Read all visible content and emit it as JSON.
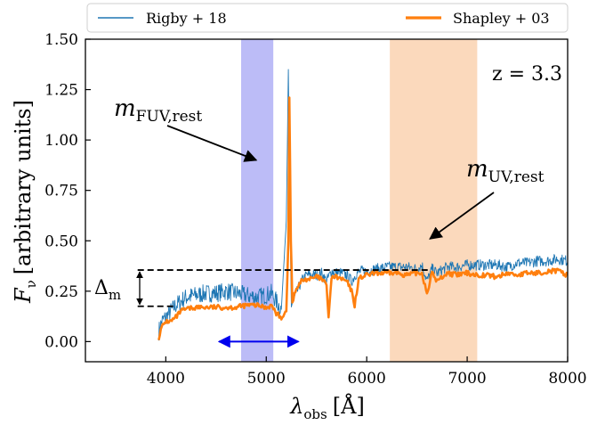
{
  "chart_data": {
    "type": "line",
    "xlabel_symbol": "λ",
    "xlabel_sub": "obs",
    "xlabel_unit": "[Å]",
    "ylabel_symbol": "F",
    "ylabel_sub": "ν",
    "ylabel_unit": "[arbitrary units]",
    "xlim": [
      3200,
      8000
    ],
    "ylim": [
      -0.1,
      1.5
    ],
    "xticks": [
      4000,
      5000,
      6000,
      7000,
      8000
    ],
    "yticks": [
      0.0,
      0.25,
      0.5,
      0.75,
      1.0,
      1.25,
      1.5
    ],
    "ytick_labels": [
      "0.00",
      "0.25",
      "0.50",
      "0.75",
      "1.00",
      "1.25",
      "1.50"
    ],
    "grid": false,
    "legend_position": "top, above plot",
    "series": [
      {
        "name": "Rigby + 18",
        "color": "#1f77b4",
        "style": "noisy thin line",
        "x": [
          3930,
          3960,
          4000,
          4050,
          4100,
          4150,
          4200,
          4300,
          4400,
          4500,
          4600,
          4700,
          4800,
          4900,
          5000,
          5050,
          5100,
          5150,
          5200,
          5220,
          5235,
          5250,
          5300,
          5350,
          5400,
          5450,
          5500,
          5550,
          5600,
          5650,
          5700,
          5750,
          5800,
          5850,
          5900,
          5950,
          6000,
          6100,
          6200,
          6300,
          6400,
          6500,
          6550,
          6600,
          6650,
          6700,
          6800,
          6900,
          7000,
          7100,
          7200,
          7300,
          7400,
          7500,
          7600,
          7700,
          7800,
          7900,
          8000
        ],
        "y": [
          0.05,
          0.1,
          0.12,
          0.15,
          0.18,
          0.2,
          0.22,
          0.23,
          0.24,
          0.24,
          0.25,
          0.24,
          0.23,
          0.22,
          0.23,
          0.24,
          0.2,
          0.16,
          0.6,
          1.35,
          0.6,
          0.18,
          0.24,
          0.3,
          0.33,
          0.33,
          0.33,
          0.34,
          0.3,
          0.35,
          0.34,
          0.34,
          0.33,
          0.3,
          0.34,
          0.35,
          0.35,
          0.36,
          0.37,
          0.37,
          0.37,
          0.36,
          0.38,
          0.3,
          0.36,
          0.34,
          0.37,
          0.37,
          0.38,
          0.38,
          0.38,
          0.38,
          0.37,
          0.39,
          0.39,
          0.4,
          0.4,
          0.41,
          0.4
        ]
      },
      {
        "name": "Shapley + 03",
        "color": "#ff7f0e",
        "style": "thick line",
        "x": [
          3930,
          3960,
          4000,
          4050,
          4100,
          4150,
          4200,
          4300,
          4400,
          4500,
          4600,
          4700,
          4800,
          4900,
          5000,
          5050,
          5100,
          5150,
          5200,
          5220,
          5230,
          5245,
          5260,
          5300,
          5350,
          5400,
          5450,
          5500,
          5550,
          5600,
          5620,
          5650,
          5700,
          5750,
          5800,
          5850,
          5880,
          5920,
          5950,
          6000,
          6100,
          6200,
          6300,
          6400,
          6500,
          6550,
          6600,
          6650,
          6700,
          6800,
          6900,
          7000,
          7100,
          7200,
          7300,
          7400,
          7500,
          7600,
          7700,
          7800,
          7900,
          8000
        ],
        "y": [
          0.02,
          0.07,
          0.1,
          0.1,
          0.12,
          0.15,
          0.16,
          0.17,
          0.17,
          0.17,
          0.17,
          0.17,
          0.18,
          0.18,
          0.17,
          0.18,
          0.14,
          0.12,
          0.15,
          0.5,
          1.21,
          0.5,
          0.2,
          0.26,
          0.3,
          0.31,
          0.31,
          0.32,
          0.31,
          0.28,
          0.12,
          0.32,
          0.32,
          0.31,
          0.3,
          0.25,
          0.18,
          0.31,
          0.32,
          0.33,
          0.34,
          0.34,
          0.34,
          0.33,
          0.34,
          0.34,
          0.24,
          0.34,
          0.3,
          0.34,
          0.33,
          0.34,
          0.33,
          0.33,
          0.32,
          0.34,
          0.33,
          0.34,
          0.34,
          0.35,
          0.35,
          0.33
        ]
      }
    ],
    "shaded_bands": [
      {
        "x": [
          4750,
          5070
        ],
        "color": "#bcbcf7"
      },
      {
        "x": [
          6230,
          7100
        ],
        "color": "#fbd9bc"
      }
    ],
    "annotations": {
      "redshift": "z = 3.3",
      "fuv_symbol": "m",
      "fuv_sub": "FUV,rest",
      "fuv_arrow_tip": [
        4900,
        0.9
      ],
      "uv_symbol": "m",
      "uv_sub": "UV,rest",
      "uv_arrow_tip": [
        6630,
        0.51
      ],
      "delta_symbol": "Δ",
      "delta_sub": "m",
      "delta_levels": [
        0.355,
        0.175
      ],
      "delta_upper_x": [
        3720,
        6620
      ],
      "delta_lower_x": [
        3720,
        4100
      ],
      "double_arrow_x": [
        4530,
        5320
      ],
      "double_arrow_y": 0.0,
      "double_arrow_color": "#0000ee"
    }
  }
}
